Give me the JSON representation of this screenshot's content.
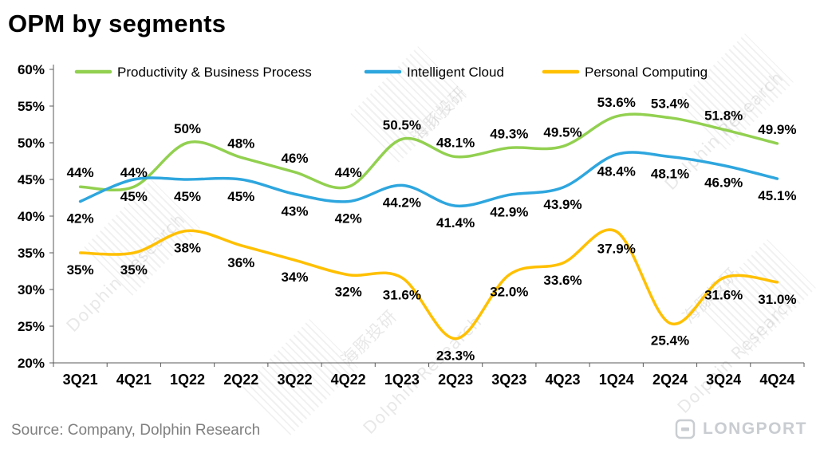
{
  "page": {
    "title": "OPM by segments",
    "source": "Source:  Company, Dolphin Research",
    "logo_text": "LONGPORT"
  },
  "watermark": {
    "cn": "海豚投研",
    "en": "Dolphin Research"
  },
  "chart_data": {
    "type": "line",
    "title": "OPM by segments",
    "xlabel": "",
    "ylabel": "",
    "ylim": [
      20,
      60
    ],
    "ytick_step": 5,
    "ytick_labels": [
      "20%",
      "25%",
      "30%",
      "35%",
      "40%",
      "45%",
      "50%",
      "55%",
      "60%"
    ],
    "grid": false,
    "legend_position": "top",
    "line_style": "smooth",
    "categories": [
      "3Q21",
      "4Q21",
      "1Q22",
      "2Q22",
      "3Q22",
      "4Q22",
      "1Q23",
      "2Q23",
      "3Q23",
      "4Q23",
      "1Q24",
      "2Q24",
      "3Q24",
      "4Q24"
    ],
    "series": [
      {
        "id": "productivity-business-process",
        "name": "Productivity & Business Process",
        "color": "#92D050",
        "label_position": "above",
        "values": [
          44,
          44,
          50,
          48,
          46,
          44,
          50.5,
          48.1,
          49.3,
          49.5,
          53.6,
          53.4,
          51.8,
          49.9
        ],
        "labels": [
          "44%",
          "44%",
          "50%",
          "48%",
          "46%",
          "44%",
          "50.5%",
          "48.1%",
          "49.3%",
          "49.5%",
          "53.6%",
          "53.4%",
          "51.8%",
          "49.9%"
        ]
      },
      {
        "id": "intelligent-cloud",
        "name": "Intelligent Cloud",
        "color": "#2EA6DE",
        "label_position": "below",
        "values": [
          42,
          45,
          45,
          45,
          43,
          42,
          44.2,
          41.4,
          42.9,
          43.9,
          48.4,
          48.1,
          46.9,
          45.1
        ],
        "labels": [
          "42%",
          "45%",
          "45%",
          "45%",
          "43%",
          "42%",
          "44.2%",
          "41.4%",
          "42.9%",
          "43.9%",
          "48.4%",
          "48.1%",
          "46.9%",
          "45.1%"
        ]
      },
      {
        "id": "personal-computing",
        "name": "Personal Computing",
        "color": "#FFC000",
        "label_position": "below",
        "values": [
          35,
          35,
          38,
          36,
          34,
          32,
          31.6,
          23.3,
          32.0,
          33.6,
          37.9,
          25.4,
          31.6,
          31.0
        ],
        "labels": [
          "35%",
          "35%",
          "38%",
          "36%",
          "34%",
          "32%",
          "31.6%",
          "23.3%",
          "32.0%",
          "33.6%",
          "37.9%",
          "25.4%",
          "31.6%",
          "31.0%"
        ]
      }
    ]
  }
}
